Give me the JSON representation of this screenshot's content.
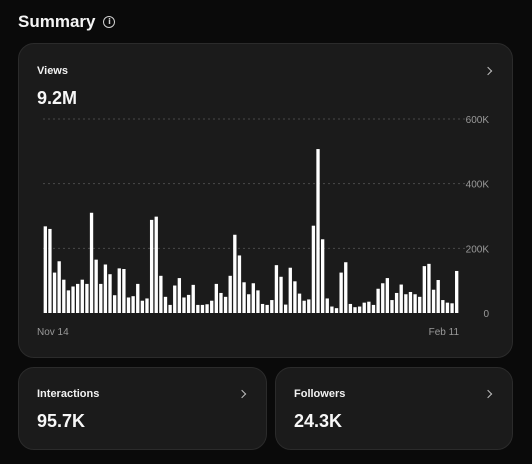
{
  "header": {
    "title": "Summary",
    "info_icon": "info-circle-icon"
  },
  "views": {
    "title": "Views",
    "value": "9.2M",
    "chevron_icon": "chevron-right-icon"
  },
  "interactions": {
    "title": "Interactions",
    "value": "95.7K",
    "chevron_icon": "chevron-right-icon"
  },
  "followers": {
    "title": "Followers",
    "value": "24.3K",
    "chevron_icon": "chevron-right-icon"
  },
  "chart_data": {
    "type": "bar",
    "x_start_label": "Nov 14",
    "x_end_label": "Feb 11",
    "y_ticks": [
      "600K",
      "400K",
      "200K",
      "0"
    ],
    "ylim": [
      0,
      600000
    ],
    "bar_color": "#ffffff",
    "grid": true,
    "values": [
      268000,
      260000,
      125000,
      160000,
      103000,
      70000,
      82000,
      90000,
      103000,
      90000,
      310000,
      165000,
      90000,
      150000,
      120000,
      55000,
      138000,
      136000,
      48000,
      52000,
      90000,
      38000,
      45000,
      288000,
      298000,
      115000,
      50000,
      25000,
      85000,
      108000,
      48000,
      56000,
      87000,
      25000,
      25000,
      27000,
      38000,
      90000,
      62000,
      50000,
      115000,
      242000,
      178000,
      95000,
      58000,
      92000,
      70000,
      28000,
      25000,
      40000,
      148000,
      112000,
      26000,
      140000,
      98000,
      60000,
      38000,
      42000,
      270000,
      507000,
      228000,
      45000,
      20000,
      15000,
      125000,
      157000,
      28000,
      18000,
      20000,
      32000,
      35000,
      25000,
      75000,
      92000,
      108000,
      40000,
      62000,
      88000,
      58000,
      65000,
      58000,
      50000,
      145000,
      152000,
      72000,
      102000,
      40000,
      32000,
      30000,
      130000
    ]
  }
}
